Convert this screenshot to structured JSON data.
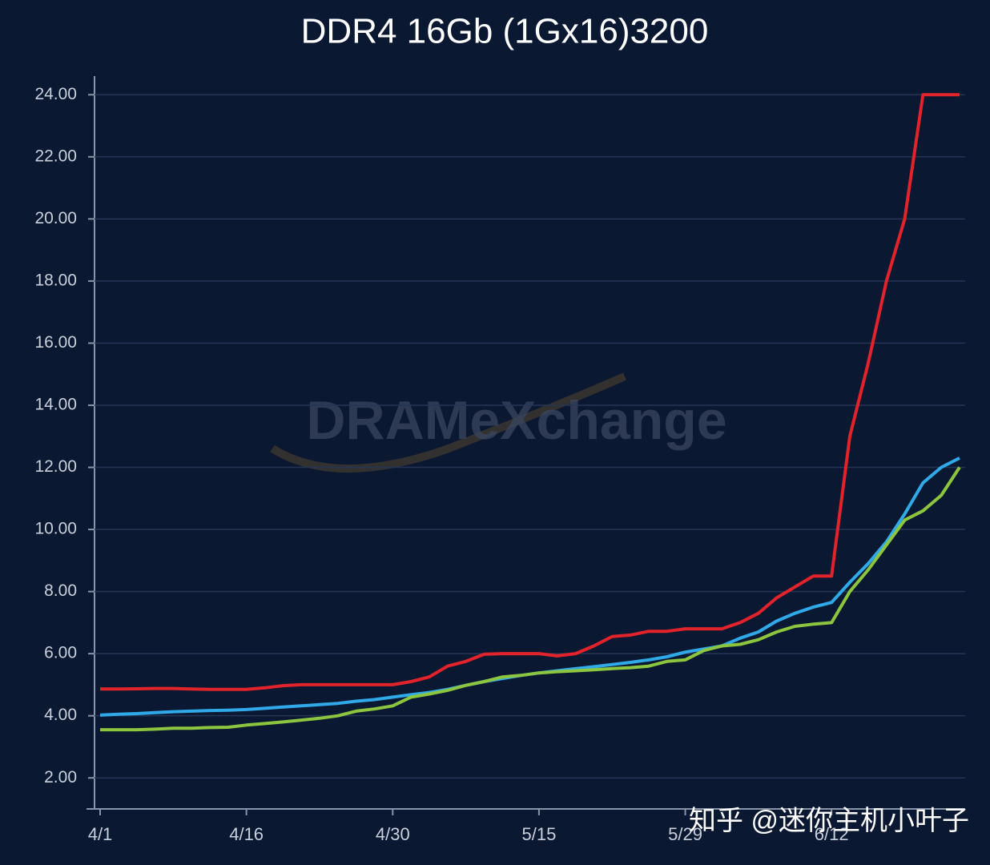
{
  "chart_data": {
    "type": "line",
    "title": "DDR4 16Gb (1Gx16)3200",
    "watermark": "DRAMeXchange",
    "credit": "知乎 @迷你主机小叶子",
    "categories": [
      "4/1",
      null,
      null,
      null,
      null,
      null,
      null,
      null,
      "4/16",
      null,
      null,
      null,
      null,
      null,
      null,
      null,
      "4/30",
      null,
      null,
      null,
      null,
      null,
      null,
      null,
      "5/15",
      null,
      null,
      null,
      null,
      null,
      null,
      null,
      "5/29",
      null,
      null,
      null,
      null,
      null,
      null,
      null,
      "6/12",
      null,
      null,
      null,
      null,
      null,
      null,
      null
    ],
    "series": [
      {
        "color": "#e3232b",
        "values": [
          4.86,
          4.86,
          4.87,
          4.88,
          4.88,
          4.86,
          4.85,
          4.85,
          4.85,
          4.9,
          4.97,
          5.0,
          5.0,
          5.0,
          5.0,
          5.0,
          5.0,
          5.1,
          5.25,
          5.6,
          5.75,
          5.98,
          6.0,
          6.0,
          6.0,
          5.93,
          6.0,
          6.25,
          6.55,
          6.6,
          6.72,
          6.72,
          6.8,
          6.8,
          6.8,
          7.0,
          7.3,
          7.8,
          8.15,
          8.5,
          8.5,
          13.0,
          15.35,
          18.0,
          20.0,
          24.0,
          24.0,
          24.0
        ]
      },
      {
        "color": "#2fa9e8",
        "values": [
          4.02,
          4.05,
          4.07,
          4.1,
          4.13,
          4.15,
          4.17,
          4.18,
          4.2,
          4.24,
          4.28,
          4.32,
          4.36,
          4.4,
          4.47,
          4.52,
          4.6,
          4.68,
          4.75,
          4.85,
          4.98,
          5.1,
          5.2,
          5.3,
          5.38,
          5.45,
          5.52,
          5.58,
          5.65,
          5.72,
          5.8,
          5.9,
          6.05,
          6.15,
          6.25,
          6.5,
          6.7,
          7.05,
          7.3,
          7.5,
          7.65,
          8.3,
          8.9,
          9.6,
          10.5,
          11.5,
          12.0,
          12.3
        ]
      },
      {
        "color": "#8cc63f",
        "values": [
          3.55,
          3.55,
          3.55,
          3.57,
          3.6,
          3.6,
          3.62,
          3.63,
          3.7,
          3.75,
          3.8,
          3.86,
          3.92,
          4.0,
          4.15,
          4.22,
          4.32,
          4.6,
          4.7,
          4.82,
          4.98,
          5.1,
          5.25,
          5.3,
          5.38,
          5.42,
          5.45,
          5.48,
          5.52,
          5.55,
          5.6,
          5.75,
          5.8,
          6.1,
          6.25,
          6.3,
          6.45,
          6.7,
          6.88,
          6.95,
          7.0,
          8.0,
          8.7,
          9.5,
          10.3,
          10.6,
          11.1,
          12.0
        ]
      }
    ],
    "ylim": [
      1.0,
      24.6
    ],
    "yticks": [
      {
        "value": 2,
        "label": "2.00"
      },
      {
        "value": 4,
        "label": "4.00"
      },
      {
        "value": 6,
        "label": "6.00"
      },
      {
        "value": 8,
        "label": "8.00"
      },
      {
        "value": 10,
        "label": "10.00"
      },
      {
        "value": 12,
        "label": "12.00"
      },
      {
        "value": 14,
        "label": "14.00"
      },
      {
        "value": 16,
        "label": "16.00"
      },
      {
        "value": 18,
        "label": "18.00"
      },
      {
        "value": 20,
        "label": "20.00"
      },
      {
        "value": 22,
        "label": "22.00"
      },
      {
        "value": 24,
        "label": "24.00"
      }
    ],
    "grid": true
  }
}
